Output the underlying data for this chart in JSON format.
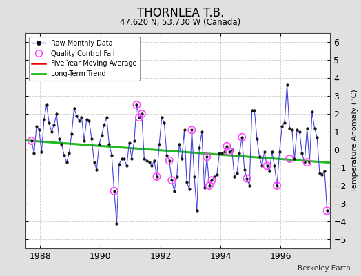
{
  "title": "THORNLEA T.B.",
  "subtitle": "47.620 N, 53.730 W (Canada)",
  "ylabel": "Temperature Anomaly (°C)",
  "watermark": "Berkeley Earth",
  "xlim": [
    1987.5,
    1997.65
  ],
  "ylim": [
    -5.5,
    6.5
  ],
  "yticks": [
    -5,
    -4,
    -3,
    -2,
    -1,
    0,
    1,
    2,
    3,
    4,
    5,
    6
  ],
  "xticks": [
    1988,
    1990,
    1992,
    1994,
    1996
  ],
  "bg_color": "#e0e0e0",
  "plot_bg_color": "#ffffff",
  "raw_color": "#4444dd",
  "raw_marker_color": "#111111",
  "qc_color": "#ff44ff",
  "moving_avg_color": "#ee0000",
  "trend_color": "#22bb22",
  "raw_x": [
    1987.708,
    1987.792,
    1987.875,
    1987.958,
    1988.042,
    1988.125,
    1988.208,
    1988.292,
    1988.375,
    1988.458,
    1988.542,
    1988.625,
    1988.708,
    1988.792,
    1988.875,
    1988.958,
    1989.042,
    1989.125,
    1989.208,
    1989.292,
    1989.375,
    1989.458,
    1989.542,
    1989.625,
    1989.708,
    1989.792,
    1989.875,
    1989.958,
    1990.042,
    1990.125,
    1990.208,
    1990.292,
    1990.375,
    1990.458,
    1990.542,
    1990.625,
    1990.708,
    1990.792,
    1990.875,
    1990.958,
    1991.042,
    1991.125,
    1991.208,
    1991.292,
    1991.375,
    1991.458,
    1991.542,
    1991.625,
    1991.708,
    1991.792,
    1991.875,
    1991.958,
    1992.042,
    1992.125,
    1992.208,
    1992.292,
    1992.375,
    1992.458,
    1992.542,
    1992.625,
    1992.708,
    1992.792,
    1992.875,
    1992.958,
    1993.042,
    1993.125,
    1993.208,
    1993.292,
    1993.375,
    1993.458,
    1993.542,
    1993.625,
    1993.708,
    1993.792,
    1993.875,
    1993.958,
    1994.042,
    1994.125,
    1994.208,
    1994.292,
    1994.375,
    1994.458,
    1994.542,
    1994.625,
    1994.708,
    1994.792,
    1994.875,
    1994.958,
    1995.042,
    1995.125,
    1995.208,
    1995.292,
    1995.375,
    1995.458,
    1995.542,
    1995.625,
    1995.708,
    1995.792,
    1995.875,
    1995.958,
    1996.042,
    1996.125,
    1996.208,
    1996.292,
    1996.375,
    1996.458,
    1996.542,
    1996.625,
    1996.708,
    1996.792,
    1996.875,
    1996.958,
    1997.042,
    1997.125,
    1997.208,
    1997.292,
    1997.375,
    1997.458,
    1997.542
  ],
  "raw_y": [
    0.5,
    -0.2,
    1.3,
    1.1,
    -0.1,
    1.7,
    2.5,
    1.5,
    1.0,
    1.4,
    2.0,
    0.6,
    0.3,
    -0.3,
    -0.7,
    -0.2,
    0.9,
    2.3,
    1.9,
    1.6,
    1.8,
    0.5,
    1.7,
    1.6,
    0.6,
    -0.7,
    -1.1,
    0.3,
    0.8,
    1.4,
    1.8,
    0.3,
    -0.3,
    -2.3,
    -4.1,
    -0.8,
    -0.5,
    -0.5,
    -0.9,
    0.4,
    -0.5,
    0.5,
    2.5,
    1.8,
    2.0,
    -0.5,
    -0.6,
    -0.7,
    -0.9,
    -0.6,
    -1.5,
    0.3,
    1.8,
    1.5,
    -0.3,
    -0.6,
    -1.7,
    -2.3,
    -1.5,
    0.3,
    -0.5,
    1.1,
    -1.8,
    -2.2,
    1.1,
    -1.5,
    -3.4,
    0.1,
    1.0,
    -2.1,
    -0.4,
    -2.0,
    -1.7,
    -1.5,
    -1.4,
    -0.2,
    -0.2,
    -0.1,
    0.2,
    -0.1,
    0.0,
    -1.5,
    -1.3,
    -0.2,
    0.7,
    -1.1,
    -1.6,
    -2.0,
    2.2,
    2.2,
    0.6,
    -0.4,
    -0.9,
    -0.1,
    -0.9,
    -1.2,
    -0.1,
    -0.9,
    -2.0,
    -0.1,
    1.3,
    1.5,
    3.6,
    1.2,
    1.1,
    -0.5,
    1.1,
    1.0,
    -0.2,
    -0.7,
    1.2,
    -0.7,
    2.1,
    1.2,
    0.7,
    -1.3,
    -1.4,
    -1.2,
    -3.4
  ],
  "qc_fail_x": [
    1987.708,
    1990.458,
    1991.208,
    1991.292,
    1991.375,
    1991.875,
    1992.292,
    1992.375,
    1993.042,
    1993.542,
    1993.625,
    1993.708,
    1994.208,
    1994.292,
    1994.708,
    1994.875,
    1995.542,
    1995.875,
    1996.292,
    1996.875,
    1997.542
  ],
  "qc_fail_y": [
    0.5,
    -2.3,
    2.5,
    1.8,
    2.0,
    -1.5,
    -0.6,
    -1.7,
    1.1,
    -0.4,
    -2.0,
    -1.7,
    0.2,
    -0.1,
    0.7,
    -1.6,
    -0.9,
    -2.0,
    -0.5,
    -0.7,
    -3.4
  ],
  "trend_x": [
    1987.5,
    1997.65
  ],
  "trend_y": [
    0.52,
    -0.72
  ]
}
